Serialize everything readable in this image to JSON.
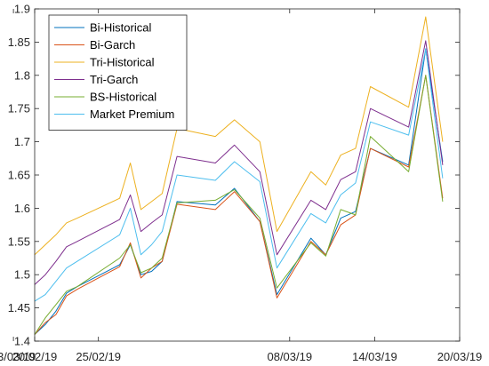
{
  "chart_data": {
    "type": "line",
    "title": "",
    "xlabel": "",
    "ylabel": "",
    "x": [
      "20/02/19",
      "21/02/19",
      "22/02/19",
      "25/02/19",
      "26/02/19",
      "27/02/19",
      "28/02/19",
      "01/03/19",
      "04/03/19",
      "05/03/19",
      "06/03/19",
      "07/03/19",
      "08/03/19",
      "11/03/19",
      "12/03/19",
      "13/03/19",
      "14/03/19",
      "15/03/19",
      "18/03/19",
      "19/03/19",
      "20/03/19"
    ],
    "x_tick_labels": [
      "20/02/19",
      "25/02/19",
      "03/03/19",
      "08/03/19",
      "14/03/19",
      "20/03/19"
    ],
    "ylim": [
      1.4,
      1.9
    ],
    "y_ticks": [
      1.4,
      1.45,
      1.5,
      1.55,
      1.6,
      1.65,
      1.7,
      1.75,
      1.8,
      1.85,
      1.9
    ],
    "grid": false,
    "legend_position": "top-left",
    "series": [
      {
        "name": "Bi-Historical",
        "color": "#0072BD",
        "points": [
          [
            0,
            1.41
          ],
          [
            0.5,
            1.425
          ],
          [
            1,
            1.445
          ],
          [
            1.5,
            1.472
          ],
          [
            2,
            1.482
          ],
          [
            4,
            1.515
          ],
          [
            4.5,
            1.545
          ],
          [
            5,
            1.5
          ],
          [
            5.5,
            1.505
          ],
          [
            6,
            1.52
          ],
          [
            6.7,
            1.61
          ],
          [
            8.5,
            1.605
          ],
          [
            9.4,
            1.63
          ],
          [
            10.6,
            1.58
          ],
          [
            11.4,
            1.47
          ],
          [
            13,
            1.555
          ],
          [
            13.7,
            1.53
          ],
          [
            14.4,
            1.585
          ],
          [
            15.1,
            1.595
          ],
          [
            15.8,
            1.69
          ],
          [
            17.6,
            1.665
          ],
          [
            18.4,
            1.84
          ],
          [
            19.2,
            1.67
          ]
        ]
      },
      {
        "name": "Bi-Garch",
        "color": "#D95319",
        "points": [
          [
            0,
            1.41
          ],
          [
            0.5,
            1.428
          ],
          [
            1,
            1.44
          ],
          [
            1.5,
            1.468
          ],
          [
            2,
            1.478
          ],
          [
            4,
            1.512
          ],
          [
            4.5,
            1.548
          ],
          [
            5,
            1.495
          ],
          [
            5.5,
            1.51
          ],
          [
            6,
            1.52
          ],
          [
            6.7,
            1.606
          ],
          [
            8.5,
            1.598
          ],
          [
            9.4,
            1.625
          ],
          [
            10.6,
            1.58
          ],
          [
            11.4,
            1.465
          ],
          [
            13,
            1.55
          ],
          [
            13.7,
            1.53
          ],
          [
            14.4,
            1.575
          ],
          [
            15.1,
            1.59
          ],
          [
            15.8,
            1.69
          ],
          [
            17.6,
            1.662
          ],
          [
            18.4,
            1.8
          ],
          [
            19.2,
            1.615
          ]
        ]
      },
      {
        "name": "Tri-Historical",
        "color": "#EDB120",
        "points": [
          [
            0,
            1.53
          ],
          [
            0.5,
            1.545
          ],
          [
            1,
            1.56
          ],
          [
            1.5,
            1.578
          ],
          [
            2,
            1.585
          ],
          [
            4,
            1.615
          ],
          [
            4.5,
            1.668
          ],
          [
            5,
            1.598
          ],
          [
            5.5,
            1.61
          ],
          [
            6,
            1.622
          ],
          [
            6.7,
            1.72
          ],
          [
            8.5,
            1.708
          ],
          [
            9.4,
            1.733
          ],
          [
            10.6,
            1.7
          ],
          [
            11.4,
            1.565
          ],
          [
            13,
            1.655
          ],
          [
            13.7,
            1.635
          ],
          [
            14.4,
            1.68
          ],
          [
            15.1,
            1.69
          ],
          [
            15.8,
            1.783
          ],
          [
            17.6,
            1.752
          ],
          [
            18.4,
            1.888
          ],
          [
            19.2,
            1.7
          ]
        ]
      },
      {
        "name": "Tri-Garch",
        "color": "#7E2F8E",
        "points": [
          [
            0,
            1.485
          ],
          [
            0.5,
            1.5
          ],
          [
            1,
            1.52
          ],
          [
            1.5,
            1.542
          ],
          [
            2,
            1.55
          ],
          [
            4,
            1.583
          ],
          [
            4.5,
            1.62
          ],
          [
            5,
            1.565
          ],
          [
            5.5,
            1.578
          ],
          [
            6,
            1.59
          ],
          [
            6.7,
            1.678
          ],
          [
            8.5,
            1.668
          ],
          [
            9.4,
            1.695
          ],
          [
            10.6,
            1.655
          ],
          [
            11.4,
            1.53
          ],
          [
            13,
            1.612
          ],
          [
            13.7,
            1.598
          ],
          [
            14.4,
            1.643
          ],
          [
            15.1,
            1.655
          ],
          [
            15.8,
            1.75
          ],
          [
            17.6,
            1.722
          ],
          [
            18.4,
            1.852
          ],
          [
            19.2,
            1.665
          ]
        ]
      },
      {
        "name": "BS-Historical",
        "color": "#77AC30",
        "points": [
          [
            0,
            1.41
          ],
          [
            0.5,
            1.435
          ],
          [
            1,
            1.455
          ],
          [
            1.5,
            1.475
          ],
          [
            2,
            1.482
          ],
          [
            4,
            1.525
          ],
          [
            4.5,
            1.545
          ],
          [
            5,
            1.503
          ],
          [
            5.5,
            1.51
          ],
          [
            6,
            1.525
          ],
          [
            6.7,
            1.608
          ],
          [
            8.5,
            1.612
          ],
          [
            9.4,
            1.628
          ],
          [
            10.6,
            1.585
          ],
          [
            11.4,
            1.48
          ],
          [
            13,
            1.548
          ],
          [
            13.7,
            1.528
          ],
          [
            14.4,
            1.598
          ],
          [
            15.1,
            1.59
          ],
          [
            15.8,
            1.708
          ],
          [
            17.6,
            1.655
          ],
          [
            18.4,
            1.8
          ],
          [
            19.2,
            1.61
          ]
        ]
      },
      {
        "name": "Market Premium",
        "color": "#4DBEEE",
        "points": [
          [
            0,
            1.46
          ],
          [
            0.5,
            1.47
          ],
          [
            1,
            1.49
          ],
          [
            1.5,
            1.51
          ],
          [
            2,
            1.52
          ],
          [
            4,
            1.56
          ],
          [
            4.5,
            1.6
          ],
          [
            5,
            1.53
          ],
          [
            5.5,
            1.545
          ],
          [
            6,
            1.565
          ],
          [
            6.7,
            1.65
          ],
          [
            8.5,
            1.642
          ],
          [
            9.4,
            1.67
          ],
          [
            10.6,
            1.64
          ],
          [
            11.4,
            1.51
          ],
          [
            13,
            1.592
          ],
          [
            13.7,
            1.578
          ],
          [
            14.4,
            1.62
          ],
          [
            15.1,
            1.638
          ],
          [
            15.8,
            1.73
          ],
          [
            17.6,
            1.71
          ],
          [
            18.4,
            1.84
          ],
          [
            19.2,
            1.645
          ]
        ]
      }
    ]
  }
}
